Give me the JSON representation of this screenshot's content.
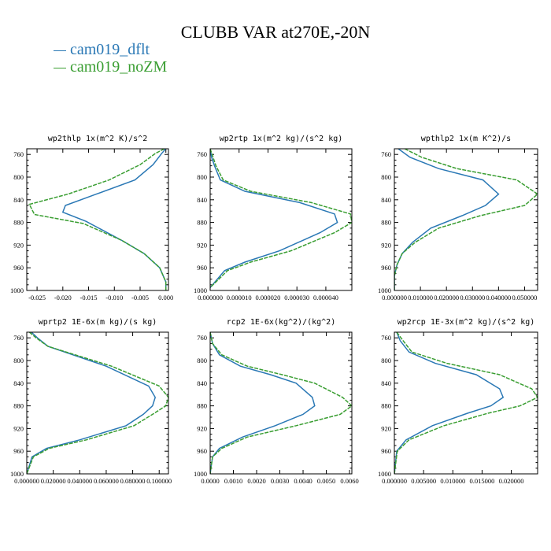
{
  "page_title": "CLUBB VAR at270E,-20N",
  "legend": [
    {
      "label": "cam019_dflt",
      "color": "#2a78b5"
    },
    {
      "label": "cam019_noZM",
      "color": "#3a9e32"
    }
  ],
  "chart_data": [
    {
      "type": "line",
      "title": "wp2thlp  1x(m^2 K)/s^2",
      "xlim": [
        -0.027,
        0.0005
      ],
      "ylim": [
        1000,
        750
      ],
      "yticks": [
        "760",
        "800",
        "840",
        "880",
        "920",
        "960",
        "1000"
      ],
      "xtick_values": [
        -0.025,
        -0.02,
        -0.015,
        -0.01,
        -0.005,
        0.0
      ],
      "xticks": [
        "-0.025",
        "-0.020",
        "-0.015",
        "-0.010",
        "-0.005",
        "0.000"
      ],
      "series": [
        {
          "name": "cam019_dflt",
          "x": [
            0.0,
            -0.0008,
            -0.0025,
            -0.006,
            -0.0135,
            -0.0195,
            -0.02,
            -0.0155,
            -0.0085,
            -0.0042,
            -0.0012,
            0.0,
            0.0
          ],
          "y": [
            750,
            758,
            778,
            805,
            830,
            850,
            862,
            878,
            912,
            935,
            960,
            985,
            1000
          ]
        },
        {
          "name": "cam019_noZM",
          "x": [
            -0.0003,
            -0.002,
            -0.005,
            -0.011,
            -0.019,
            -0.0265,
            -0.0255,
            -0.016,
            -0.0085,
            -0.0042,
            -0.0012,
            0.0,
            0.0
          ],
          "y": [
            750,
            758,
            778,
            805,
            830,
            848,
            866,
            882,
            912,
            935,
            960,
            985,
            1000
          ]
        }
      ]
    },
    {
      "type": "line",
      "title": "wp2rtp  1x(m^2 kg)/(s^2 kg)",
      "xlim": [
        0.0,
        4.9e-05
      ],
      "ylim": [
        1000,
        750
      ],
      "yticks": [
        "760",
        "800",
        "840",
        "880",
        "920",
        "960",
        "1000"
      ],
      "xtick_values": [
        0.0,
        1e-05,
        2e-05,
        3e-05,
        4e-05
      ],
      "xticks": [
        "0.000000",
        "0.000010",
        "0.000020",
        "0.000030",
        "0.000040"
      ],
      "series": [
        {
          "name": "cam019_dflt",
          "x": [
            0.0,
            5e-07,
            1.5e-06,
            3.5e-06,
            1.2e-05,
            3.1e-05,
            4.3e-05,
            4.4e-05,
            3.8e-05,
            2.4e-05,
            1.2e-05,
            5e-06,
            0.0
          ],
          "y": [
            750,
            765,
            780,
            805,
            825,
            845,
            865,
            880,
            898,
            930,
            950,
            965,
            995
          ]
        },
        {
          "name": "cam019_noZM",
          "x": [
            0.0,
            1e-06,
            2e-06,
            4.5e-06,
            1.4e-05,
            3.5e-05,
            4.85e-05,
            4.9e-05,
            4.3e-05,
            2.8e-05,
            1.4e-05,
            6e-06,
            0.0
          ],
          "y": [
            750,
            765,
            780,
            805,
            825,
            845,
            865,
            880,
            898,
            930,
            950,
            965,
            995
          ]
        }
      ]
    },
    {
      "type": "line",
      "title": "wpthlp2  1x(m K^2)/s",
      "xlim": [
        0.0,
        0.055
      ],
      "ylim": [
        1000,
        750
      ],
      "yticks": [
        "760",
        "800",
        "840",
        "880",
        "920",
        "960",
        "1000"
      ],
      "xtick_values": [
        0.0,
        0.01,
        0.02,
        0.03,
        0.04,
        0.05
      ],
      "xticks": [
        "0.000000",
        "0.010000",
        "0.020000",
        "0.030000",
        "0.040000",
        "0.050000"
      ],
      "series": [
        {
          "name": "cam019_dflt",
          "x": [
            0.0015,
            0.006,
            0.017,
            0.034,
            0.04,
            0.035,
            0.026,
            0.014,
            0.007,
            0.003,
            0.001,
            0.0,
            0.0
          ],
          "y": [
            750,
            765,
            785,
            805,
            830,
            850,
            868,
            890,
            915,
            935,
            955,
            975,
            1000
          ]
        },
        {
          "name": "cam019_noZM",
          "x": [
            0.004,
            0.0105,
            0.024,
            0.047,
            0.055,
            0.05,
            0.033,
            0.017,
            0.008,
            0.003,
            0.001,
            0.0,
            0.0
          ],
          "y": [
            750,
            765,
            785,
            805,
            830,
            850,
            868,
            890,
            915,
            935,
            955,
            975,
            1000
          ]
        }
      ]
    },
    {
      "type": "line",
      "title": "wprtp2  1E-6x(m kg)/(s kg)",
      "xlim": [
        0.0,
        0.107
      ],
      "ylim": [
        1000,
        750
      ],
      "yticks": [
        "760",
        "800",
        "840",
        "880",
        "920",
        "960",
        "1000"
      ],
      "xtick_values": [
        0.0,
        0.02,
        0.04,
        0.06,
        0.08,
        0.1
      ],
      "xticks": [
        "0.000000",
        "0.020000",
        "0.040000",
        "0.060000",
        "0.080000",
        "0.100000"
      ],
      "series": [
        {
          "name": "cam019_dflt",
          "x": [
            0.0035,
            0.008,
            0.016,
            0.06,
            0.092,
            0.097,
            0.095,
            0.088,
            0.075,
            0.04,
            0.015,
            0.004,
            0.0
          ],
          "y": [
            750,
            760,
            775,
            810,
            845,
            865,
            880,
            895,
            915,
            940,
            955,
            970,
            1000
          ]
        },
        {
          "name": "cam019_noZM",
          "x": [
            0.002,
            0.007,
            0.016,
            0.064,
            0.1,
            0.107,
            0.105,
            0.095,
            0.081,
            0.045,
            0.017,
            0.005,
            0.0
          ],
          "y": [
            750,
            760,
            775,
            810,
            845,
            865,
            880,
            895,
            915,
            940,
            955,
            970,
            1000
          ]
        }
      ]
    },
    {
      "type": "line",
      "title": "rcp2  1E-6x(kg^2)/(kg^2)",
      "xlim": [
        0.0,
        0.0061
      ],
      "ylim": [
        1000,
        750
      ],
      "yticks": [
        "760",
        "800",
        "840",
        "880",
        "920",
        "960",
        "1000"
      ],
      "xtick_values": [
        0.0,
        0.001,
        0.002,
        0.003,
        0.004,
        0.005,
        0.006
      ],
      "xticks": [
        "0.0000",
        "0.0010",
        "0.0020",
        "0.0030",
        "0.0040",
        "0.0050",
        "0.0060"
      ],
      "series": [
        {
          "name": "cam019_dflt",
          "x": [
            0.0,
            0.0001,
            0.0004,
            0.0013,
            0.0026,
            0.0037,
            0.0044,
            0.0045,
            0.004,
            0.0028,
            0.0014,
            0.0004,
            0.0001,
            0.0
          ],
          "y": [
            750,
            770,
            790,
            810,
            825,
            840,
            865,
            880,
            895,
            915,
            935,
            955,
            970,
            1000
          ]
        },
        {
          "name": "cam019_noZM",
          "x": [
            0.0,
            0.0001,
            0.0005,
            0.0016,
            0.0031,
            0.0045,
            0.0057,
            0.0061,
            0.0056,
            0.0037,
            0.0016,
            0.0005,
            0.0001,
            0.0
          ],
          "y": [
            750,
            770,
            790,
            810,
            825,
            840,
            865,
            880,
            895,
            915,
            935,
            955,
            970,
            1000
          ]
        }
      ]
    },
    {
      "type": "line",
      "title": "wp2rcp  1E-3x(m^2 kg)/(s^2 kg)",
      "xlim": [
        0.0,
        0.0245
      ],
      "ylim": [
        1000,
        750
      ],
      "yticks": [
        "760",
        "800",
        "840",
        "880",
        "920",
        "960",
        "1000"
      ],
      "xtick_values": [
        0.0,
        0.005,
        0.01,
        0.015,
        0.02
      ],
      "xticks": [
        "0.000000",
        "0.005000",
        "0.010000",
        "0.015000",
        "0.020000"
      ],
      "series": [
        {
          "name": "cam019_dflt",
          "x": [
            0.0004,
            0.001,
            0.0025,
            0.007,
            0.014,
            0.018,
            0.0186,
            0.0165,
            0.0125,
            0.0065,
            0.002,
            0.0004,
            0.0
          ],
          "y": [
            750,
            765,
            785,
            805,
            825,
            850,
            865,
            880,
            893,
            915,
            940,
            960,
            1000
          ]
        },
        {
          "name": "cam019_noZM",
          "x": [
            0.0004,
            0.0015,
            0.003,
            0.009,
            0.018,
            0.0235,
            0.0245,
            0.0215,
            0.016,
            0.0085,
            0.0025,
            0.0005,
            0.0
          ],
          "y": [
            750,
            765,
            785,
            805,
            825,
            850,
            865,
            880,
            893,
            915,
            940,
            960,
            1000
          ]
        }
      ]
    }
  ]
}
